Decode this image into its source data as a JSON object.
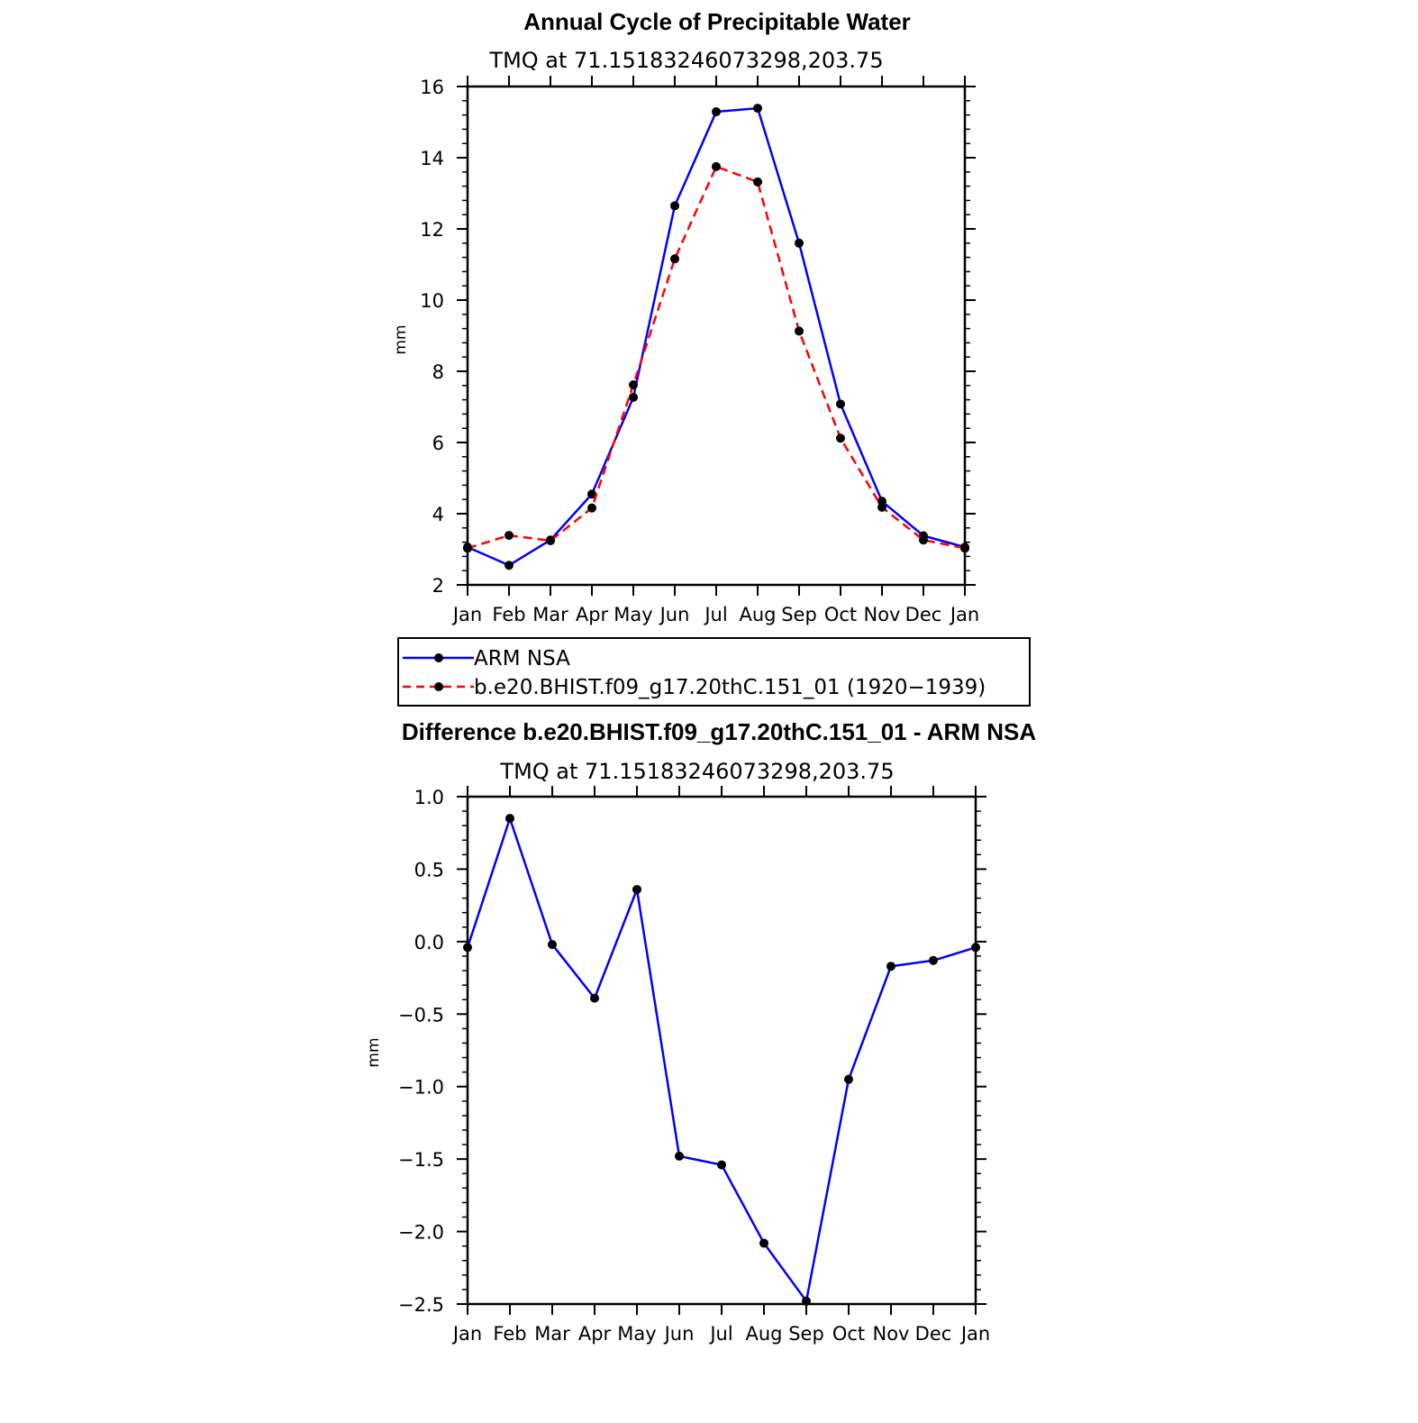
{
  "chart_data": [
    {
      "type": "line",
      "title": "Annual Cycle of Precipitable Water",
      "subtitle": "TMQ at 71.15183246073298,203.75",
      "xlabel": "",
      "ylabel": "mm",
      "categories": [
        "Jan",
        "Feb",
        "Mar",
        "Apr",
        "May",
        "Jun",
        "Jul",
        "Aug",
        "Sep",
        "Oct",
        "Nov",
        "Dec",
        "Jan"
      ],
      "ylim": [
        2,
        16
      ],
      "yticks": [
        2,
        4,
        6,
        8,
        10,
        12,
        14,
        16
      ],
      "ytick_labels": [
        "2",
        "4",
        "6",
        "8",
        "10",
        "12",
        "14",
        "16"
      ],
      "series": [
        {
          "name": "ARM NSA",
          "color": "#0000ff",
          "dash": "solid",
          "values": [
            3.06,
            2.55,
            3.26,
            4.55,
            7.27,
            12.65,
            15.29,
            15.39,
            11.6,
            7.08,
            4.35,
            3.38,
            3.06
          ]
        },
        {
          "name": "b.e20.BHIST.f09_g17.20thC.151_01 (1920−1939)",
          "color": "#ff0000",
          "dash": "dashed",
          "values": [
            3.03,
            3.39,
            3.24,
            4.16,
            7.62,
            11.16,
            13.75,
            13.32,
            9.13,
            6.12,
            4.18,
            3.26,
            3.03
          ]
        }
      ],
      "legend": "below"
    },
    {
      "type": "line",
      "title": "Difference b.e20.BHIST.f09_g17.20thC.151_01 - ARM NSA",
      "subtitle": "TMQ at 71.15183246073298,203.75",
      "xlabel": "",
      "ylabel": "mm",
      "categories": [
        "Jan",
        "Feb",
        "Mar",
        "Apr",
        "May",
        "Jun",
        "Jul",
        "Aug",
        "Sep",
        "Oct",
        "Nov",
        "Dec",
        "Jan"
      ],
      "ylim": [
        -2.5,
        1.0
      ],
      "yticks": [
        -2.5,
        -2.0,
        -1.5,
        -1.0,
        -0.5,
        0.0,
        0.5,
        1.0
      ],
      "ytick_labels": [
        "−2.5",
        "−2.0",
        "−1.5",
        "−1.0",
        "−0.5",
        "0.0",
        "0.5",
        "1.0"
      ],
      "series": [
        {
          "color": "#0000ff",
          "dash": "solid",
          "values": [
            -0.04,
            0.85,
            -0.02,
            -0.39,
            0.36,
            -1.48,
            -1.54,
            -2.08,
            -2.48,
            -0.95,
            -0.17,
            -0.13,
            -0.04
          ]
        }
      ]
    }
  ]
}
